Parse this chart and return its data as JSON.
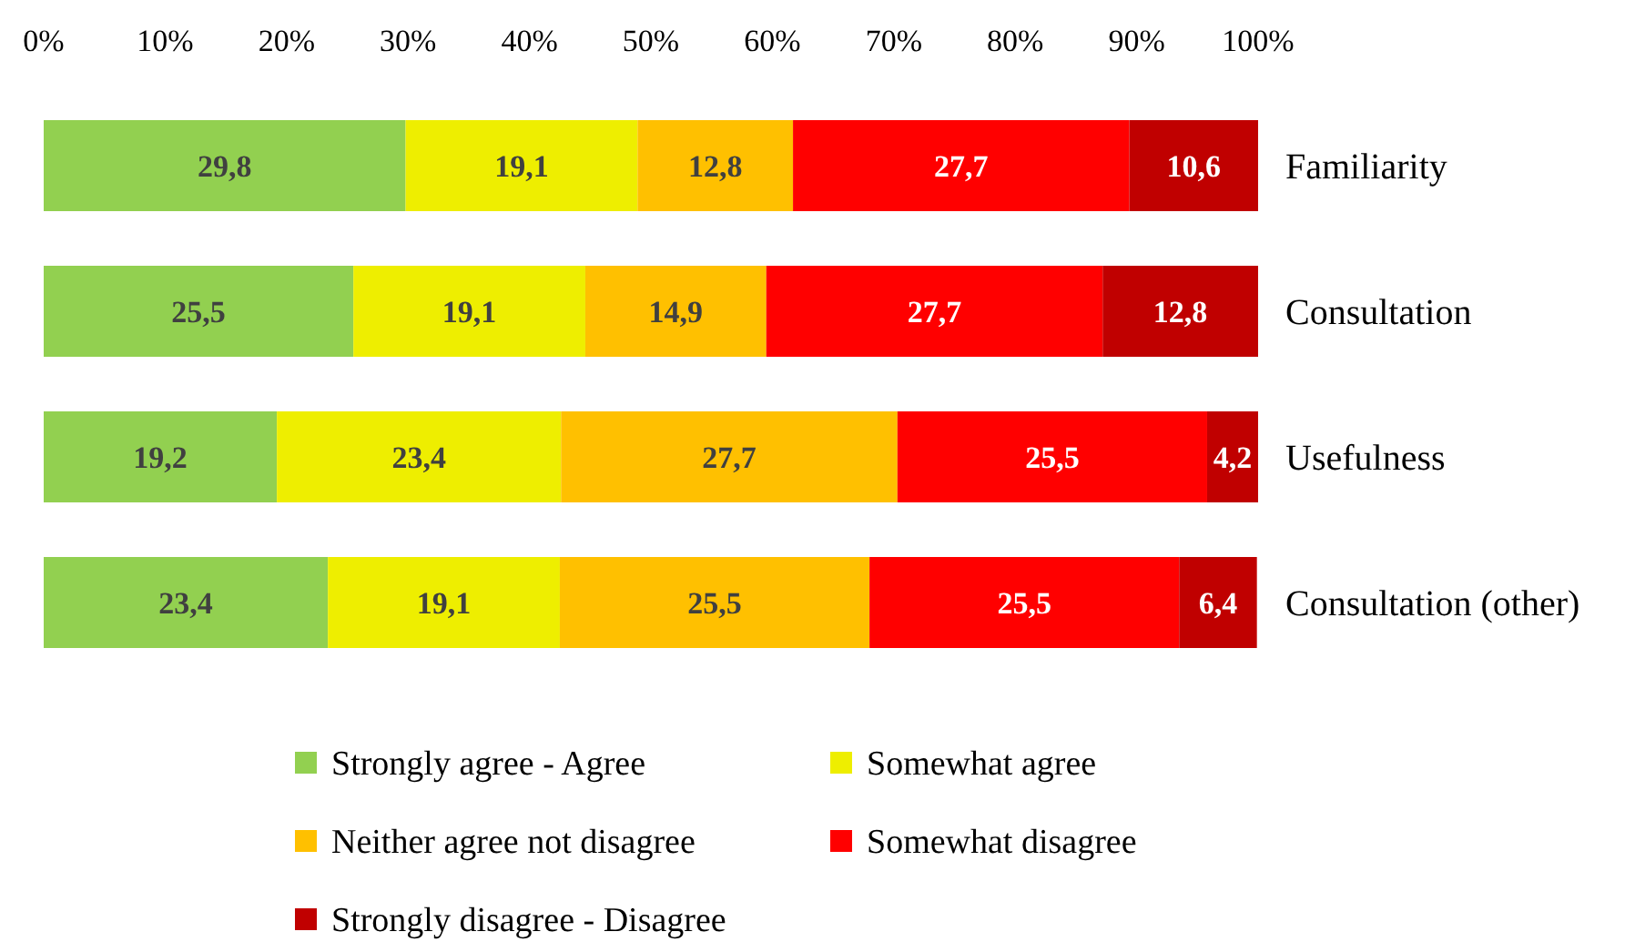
{
  "chart_data": {
    "type": "bar",
    "orientation": "horizontal",
    "stacked": true,
    "categories": [
      "Familiarity",
      "Consultation",
      "Usefulness",
      "Consultation (other)"
    ],
    "series": [
      {
        "name": "Strongly agree - Agree",
        "color": "#92d050",
        "values": [
          29.8,
          25.5,
          19.2,
          23.4
        ],
        "value_labels": [
          "29,8",
          "25,5",
          "19,2",
          "23,4"
        ]
      },
      {
        "name": "Somewhat agree",
        "color": "#eeee00",
        "values": [
          19.1,
          19.1,
          23.4,
          19.1
        ],
        "value_labels": [
          "19,1",
          "19,1",
          "23,4",
          "19,1"
        ]
      },
      {
        "name": "Neither agree not disagree",
        "color": "#ffc000",
        "values": [
          12.8,
          14.9,
          27.7,
          25.5
        ],
        "value_labels": [
          "12,8",
          "14,9",
          "27,7",
          "25,5"
        ]
      },
      {
        "name": "Somewhat disagree",
        "color": "#ff0000",
        "values": [
          27.7,
          27.7,
          25.5,
          25.5
        ],
        "value_labels": [
          "27,7",
          "27,7",
          "25,5",
          "25,5"
        ]
      },
      {
        "name": "Strongly disagree - Disagree",
        "color": "#c00000",
        "values": [
          10.6,
          12.8,
          4.2,
          6.4
        ],
        "value_labels": [
          "10,6",
          "12,8",
          "4,2",
          "6,4"
        ]
      }
    ],
    "xlim": [
      0,
      100
    ],
    "xticks": [
      {
        "value": 0,
        "label": "0%"
      },
      {
        "value": 10,
        "label": "10%"
      },
      {
        "value": 20,
        "label": "20%"
      },
      {
        "value": 30,
        "label": "30%"
      },
      {
        "value": 40,
        "label": "40%"
      },
      {
        "value": 50,
        "label": "50%"
      },
      {
        "value": 60,
        "label": "60%"
      },
      {
        "value": 70,
        "label": "70%"
      },
      {
        "value": 80,
        "label": "80%"
      },
      {
        "value": 90,
        "label": "90%"
      },
      {
        "value": 100,
        "label": "100%"
      }
    ],
    "grid": false,
    "legend": "bottom"
  }
}
